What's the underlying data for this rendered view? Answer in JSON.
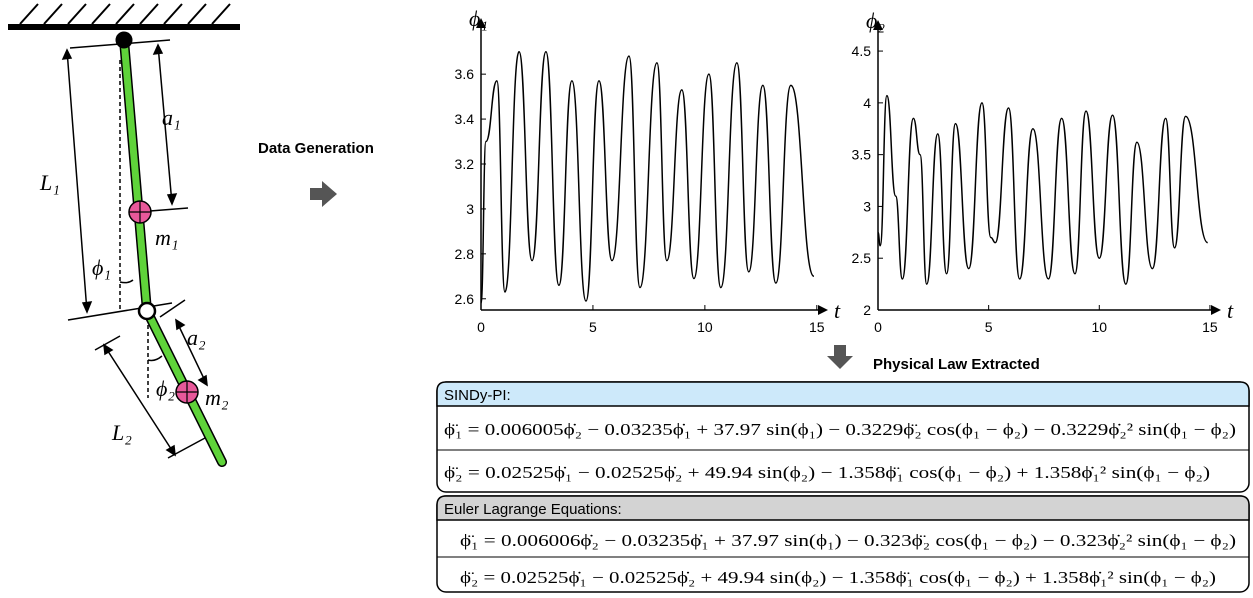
{
  "diagram": {
    "labels": [
      "a₁",
      "L₁",
      "m₁",
      "ϕ₁",
      "a₂",
      "ϕ₂",
      "m₂",
      "L₂"
    ]
  },
  "steps": [
    "Data Generation",
    "Physical Law Extracted"
  ],
  "chart_data": [
    {
      "type": "line",
      "ylabel": "ϕ₁",
      "xlabel": "t",
      "color": "#000000",
      "x": [
        0,
        0.22,
        0.71,
        1.07,
        1.7,
        2.28,
        2.9,
        3.48,
        4.06,
        4.69,
        5.27,
        5.85,
        6.61,
        7.1,
        7.86,
        8.3,
        8.97,
        9.51,
        10.18,
        10.71,
        11.43,
        11.96,
        12.59,
        13.17,
        13.84,
        14.87
      ],
      "values": [
        2.58,
        3.3,
        3.57,
        2.63,
        3.7,
        2.77,
        3.7,
        2.66,
        3.57,
        2.59,
        3.57,
        2.77,
        3.68,
        2.65,
        3.65,
        2.77,
        3.53,
        2.69,
        3.6,
        2.65,
        3.65,
        2.72,
        3.55,
        2.67,
        3.55,
        2.7
      ],
      "xlim": [
        0,
        15.5
      ],
      "ylim": [
        2.55,
        3.85
      ],
      "xticks": [
        0,
        5,
        10,
        15
      ],
      "yticks": [
        2.6,
        2.8,
        3,
        3.2,
        3.4,
        3.6
      ]
    },
    {
      "type": "line",
      "ylabel": "ϕ₂",
      "xlabel": "t",
      "color": "#000000",
      "x": [
        0,
        0.1,
        0.4,
        0.8,
        1.1,
        1.6,
        1.9,
        2.2,
        2.7,
        3.1,
        3.5,
        4.1,
        4.7,
        5.1,
        5.3,
        5.9,
        6.4,
        7.0,
        7.7,
        8.3,
        8.9,
        9.4,
        10.0,
        10.6,
        11.2,
        11.7,
        12.4,
        13.0,
        13.4,
        13.9,
        14.9
      ],
      "values": [
        2.75,
        2.62,
        4.07,
        3.1,
        2.3,
        3.85,
        3.5,
        2.25,
        3.7,
        2.35,
        3.8,
        2.4,
        4.0,
        2.7,
        2.65,
        3.95,
        2.3,
        3.75,
        2.3,
        3.85,
        2.35,
        3.92,
        2.5,
        3.88,
        2.25,
        3.62,
        2.4,
        3.85,
        2.6,
        3.87,
        2.65
      ],
      "xlim": [
        0,
        15.5
      ],
      "ylim": [
        2,
        4.8
      ],
      "xticks": [
        0,
        5,
        10,
        15
      ],
      "yticks": [
        2,
        2.5,
        3,
        3.5,
        4,
        4.5
      ]
    }
  ],
  "equations": [
    {
      "title": "SINDy-PI:",
      "lines": [
        "ϕ̈₁ = 0.006005ϕ̇₂ − 0.03235ϕ̇₁ + 37.97 sin(ϕ₁) − 0.3229ϕ̈₂ cos(ϕ₁ − ϕ₂) − 0.3229ϕ̇₂² sin(ϕ₁ − ϕ₂)",
        "ϕ̈₂ = 0.02525ϕ̇₁ − 0.02525ϕ̇₂ + 49.94 sin(ϕ₂) − 1.358ϕ̈₁ cos(ϕ₁ − ϕ₂) + 1.358ϕ̇₁² sin(ϕ₁ − ϕ₂)"
      ]
    },
    {
      "title": "Euler Lagrange Equations:",
      "lines": [
        "ϕ̈₁ = 0.006006ϕ̇₂ − 0.03235ϕ̇₁ + 37.97 sin(ϕ₁) − 0.323ϕ̈₂ cos(ϕ₁ − ϕ₂) − 0.323ϕ̇₂² sin(ϕ₁ − ϕ₂)",
        "ϕ̈₂ = 0.02525ϕ̇₁ − 0.02525ϕ̇₂ + 49.94 sin(ϕ₂) − 1.358ϕ̈₁ cos(ϕ₁ − ϕ₂) + 1.358ϕ̇₁² sin(ϕ₁ − ϕ₂)"
      ]
    }
  ]
}
